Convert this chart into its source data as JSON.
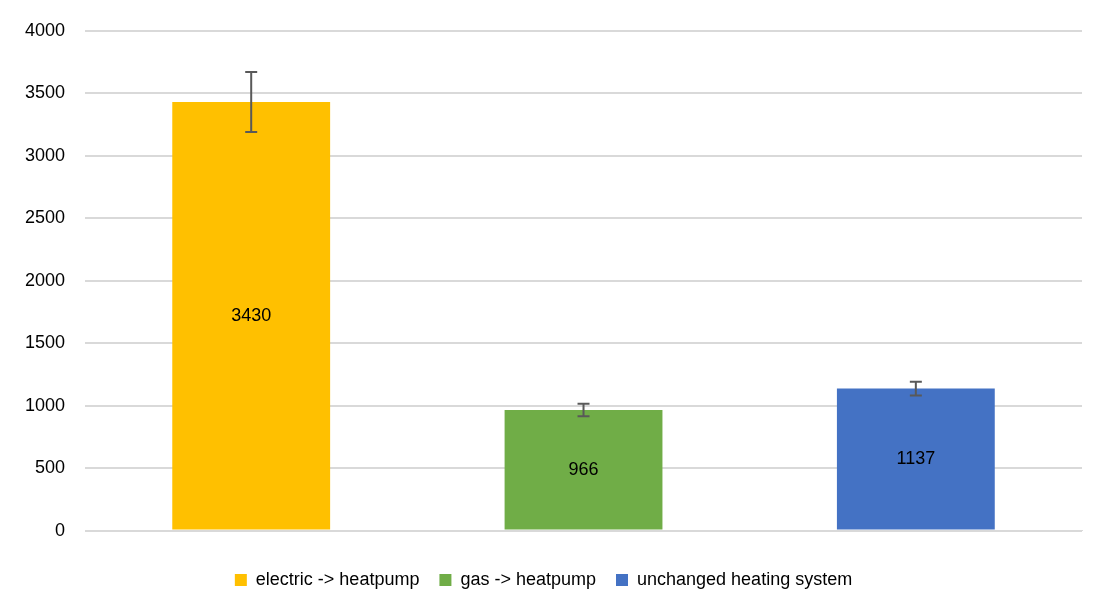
{
  "chart_data": {
    "type": "bar",
    "categories": [
      null,
      null,
      null
    ],
    "series": [
      {
        "name": "electric -> heatpump",
        "color": "#ffc000",
        "values": [
          3430,
          null,
          null
        ],
        "errors": [
          240,
          null,
          null
        ]
      },
      {
        "name": "gas -> heatpump",
        "color": "#70ad47",
        "values": [
          null,
          966,
          null
        ],
        "errors": [
          null,
          50,
          null
        ]
      },
      {
        "name": "unchanged heating system",
        "color": "#4472c4",
        "values": [
          null,
          null,
          1137
        ],
        "errors": [
          null,
          null,
          55
        ]
      }
    ],
    "ylim": [
      0,
      4000
    ],
    "yticks": [
      0,
      500,
      1000,
      1500,
      2000,
      2500,
      3000,
      3500,
      4000
    ],
    "grid": "y",
    "legend": "bottom",
    "data_labels": true
  }
}
